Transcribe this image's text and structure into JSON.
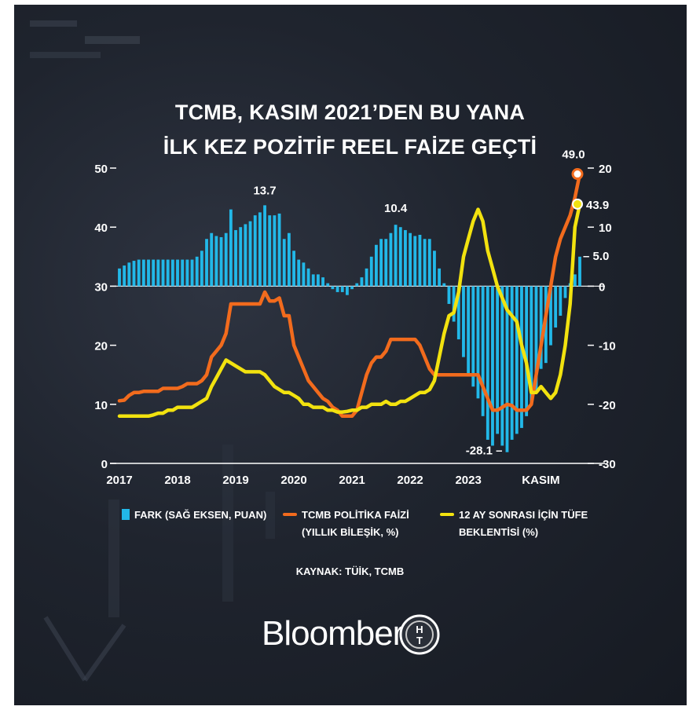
{
  "title_line1": "TCMB, KASIM 2021’DEN BU YANA",
  "title_line2": "İLK KEZ POZİTİF REEL FAİZE GEÇTİ",
  "chart_data": {
    "type": "bar",
    "title": "TCMB, KASIM 2021’DEN BU YANA İLK KEZ POZİTİF REEL FAİZE GEÇTİ",
    "x_tick_labels": [
      "2017",
      "2018",
      "2019",
      "2020",
      "2021",
      "2022",
      "2023",
      "KASIM"
    ],
    "left_axis": {
      "ticks": [
        "0",
        "10",
        "20",
        "30",
        "40",
        "50"
      ],
      "range": [
        0,
        50
      ]
    },
    "right_axis": {
      "ticks": [
        "-30",
        "-20",
        "-10",
        "0",
        "10",
        "20"
      ],
      "range": [
        -30,
        20
      ]
    },
    "series": [
      {
        "name": "FARK (SAĞ EKSEN, PUAN)",
        "type": "bar",
        "axis": "right",
        "color": "#22b8e8",
        "values": [
          3,
          3.5,
          4,
          4.3,
          4.5,
          4.5,
          4.5,
          4.5,
          4.5,
          4.5,
          4.5,
          4.5,
          4.5,
          4.5,
          4.5,
          4.5,
          5,
          6,
          8,
          9,
          8.5,
          8.3,
          9,
          13,
          9.5,
          10,
          10.5,
          11,
          12,
          12.5,
          13.7,
          12,
          12,
          12.3,
          8,
          9,
          6,
          4.5,
          4,
          3,
          2,
          2,
          1.5,
          0.5,
          -0.5,
          -1,
          -1,
          -1.5,
          -0.5,
          0.5,
          1.5,
          3,
          5,
          7,
          8,
          8,
          9,
          10.4,
          10,
          9.5,
          9,
          8.5,
          8.7,
          8,
          8,
          6,
          3,
          0.5,
          -3,
          -6,
          -9,
          -12,
          -15,
          -17,
          -19,
          -22,
          -26,
          -27,
          -25,
          -27,
          -28.1,
          -26,
          -25,
          -24,
          -22,
          -20,
          -18,
          -14,
          -13,
          -10,
          -7,
          -5,
          -2,
          0.5,
          2,
          5
        ]
      },
      {
        "name": "TCMB POLİTİKA FAİZİ (YILLIK BİLEŞİK, %)",
        "type": "line",
        "axis": "left",
        "color": "#f26b1d",
        "values": [
          10.6,
          10.7,
          11.5,
          12,
          12,
          12.2,
          12.2,
          12.2,
          12.2,
          12.7,
          12.7,
          12.7,
          12.7,
          13,
          13.5,
          13.5,
          13.5,
          14,
          15,
          18,
          19,
          20,
          22,
          27,
          27,
          27,
          27,
          27,
          27,
          27,
          29,
          27.5,
          27.5,
          28,
          25,
          25,
          20,
          18,
          16,
          14,
          13,
          12,
          11,
          10.5,
          9.5,
          9,
          8,
          8,
          8,
          9,
          12,
          15,
          17,
          18,
          18,
          19,
          21,
          21,
          21,
          21,
          21,
          21,
          20,
          18,
          16,
          15,
          15,
          15,
          15,
          15,
          15,
          15,
          15,
          15,
          15,
          13,
          11,
          9,
          9,
          9.5,
          10,
          9.8,
          9,
          9,
          9,
          10,
          15,
          20,
          25,
          30,
          35,
          38,
          40,
          42,
          45,
          49
        ]
      },
      {
        "name": "12 AY SONRASI İÇİN TÜFE BEKLENTİSİ (%)",
        "type": "line",
        "axis": "left",
        "color": "#f2e20f",
        "values": [
          8,
          8,
          8,
          8,
          8,
          8,
          8,
          8.2,
          8.5,
          8.5,
          9,
          9,
          9.5,
          9.5,
          9.5,
          9.5,
          10,
          10.5,
          11,
          13,
          14.5,
          16,
          17.5,
          17,
          16.5,
          16,
          15.5,
          15.5,
          15.5,
          15.5,
          15,
          14,
          13,
          12.5,
          12,
          12,
          11.5,
          11,
          10,
          10,
          9.5,
          9.5,
          9.5,
          9,
          9,
          8.7,
          8.7,
          8.8,
          9,
          9,
          9.5,
          9.5,
          10,
          10,
          10,
          10.5,
          10,
          10,
          10.5,
          10.5,
          11,
          11.5,
          12,
          12,
          12.5,
          14,
          18,
          22,
          25,
          25.5,
          29,
          35,
          38,
          41,
          43,
          41,
          36,
          33,
          30,
          28,
          26,
          25,
          24,
          20,
          17,
          12,
          12,
          13,
          12,
          11,
          12,
          15,
          20,
          27,
          40,
          43.9
        ]
      }
    ],
    "annotations": [
      "13.7",
      "10.4",
      "-28.1",
      "49.0",
      "43.9",
      "5.0"
    ],
    "grid": false,
    "legend_position": "bottom"
  },
  "legend": {
    "fark_label": "FARK (SAĞ EKSEN, PUAN)",
    "tcmb_label_line1": "TCMB POLİTİKA FAİZİ",
    "tcmb_label_line2": "(YILLIK BİLEŞİK, %)",
    "cpi_label_line1": "12 AY SONRASI İÇİN TÜFE",
    "cpi_label_line2": "BEKLENTİSİ (%)"
  },
  "source": "KAYNAK: TÜİK, TCMB",
  "brand": "Bloomberg",
  "logo_letters": "HT",
  "colors": {
    "bar": "#22b8e8",
    "policy_rate": "#f26b1d",
    "cpi_expectation": "#f2e20f",
    "background": "#1f242e"
  }
}
